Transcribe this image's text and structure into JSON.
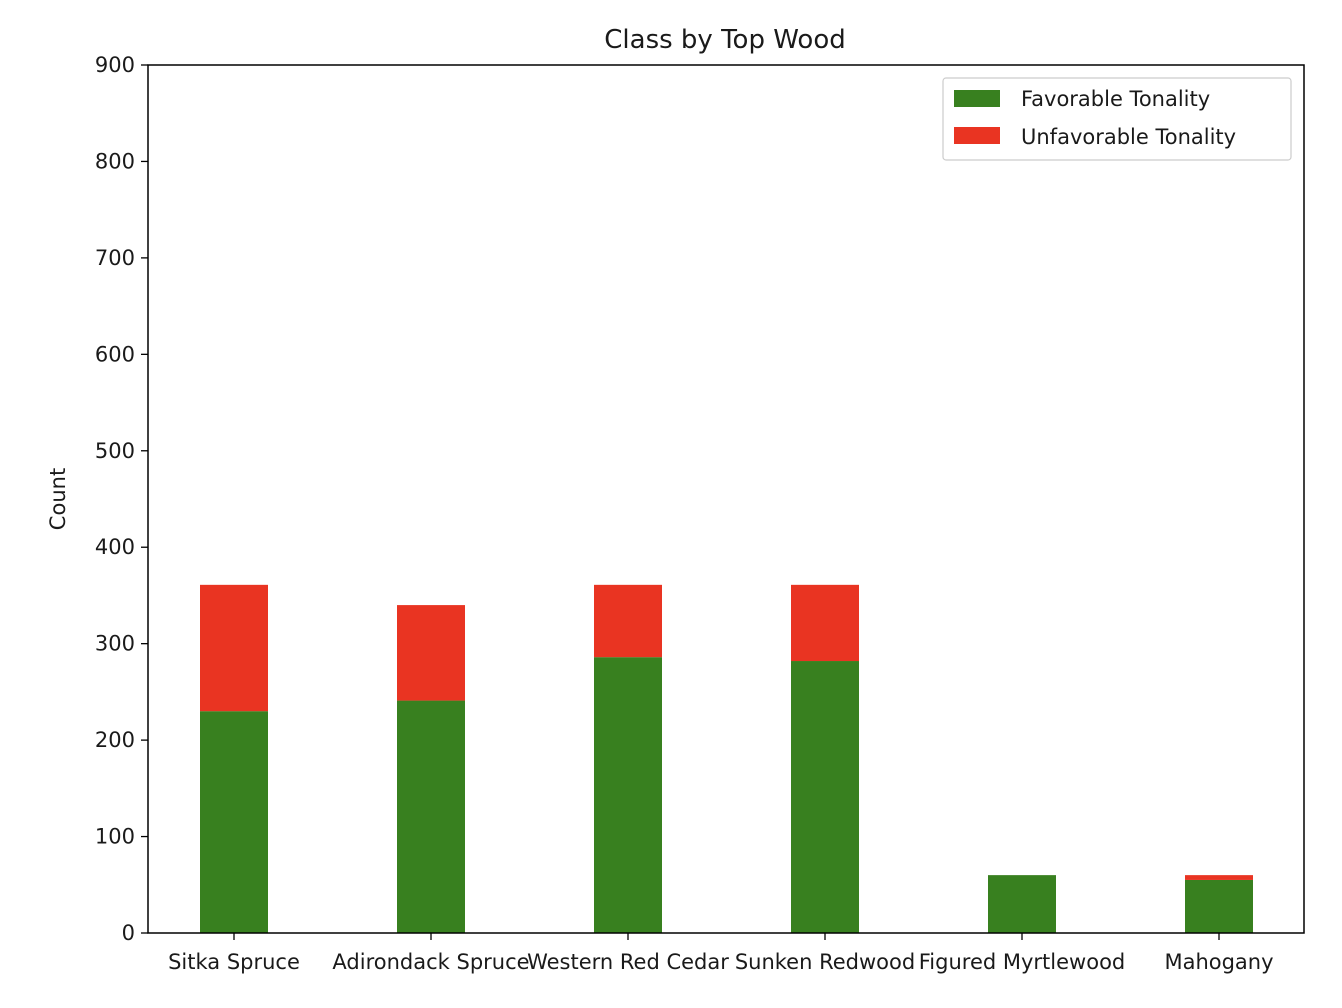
{
  "chart_data": {
    "type": "bar",
    "stacked": true,
    "title": "Class by Top Wood",
    "xlabel": "",
    "ylabel": "Count",
    "ylim": [
      0,
      900
    ],
    "yticks": [
      0,
      100,
      200,
      300,
      400,
      500,
      600,
      700,
      800,
      900
    ],
    "grid": false,
    "legend_position": "top-right",
    "categories": [
      "Sitka Spruce",
      "Adirondack Spruce",
      "Western Red Cedar",
      "Sunken Redwood",
      "Figured Myrtlewood",
      "Mahogany"
    ],
    "series": [
      {
        "name": "Favorable Tonality",
        "color": "#38801f",
        "values": [
          230,
          241,
          286,
          282,
          60,
          55
        ]
      },
      {
        "name": "Unfavorable Tonality",
        "color": "#e93422",
        "values": [
          131,
          99,
          75,
          79,
          0,
          5
        ]
      }
    ]
  }
}
